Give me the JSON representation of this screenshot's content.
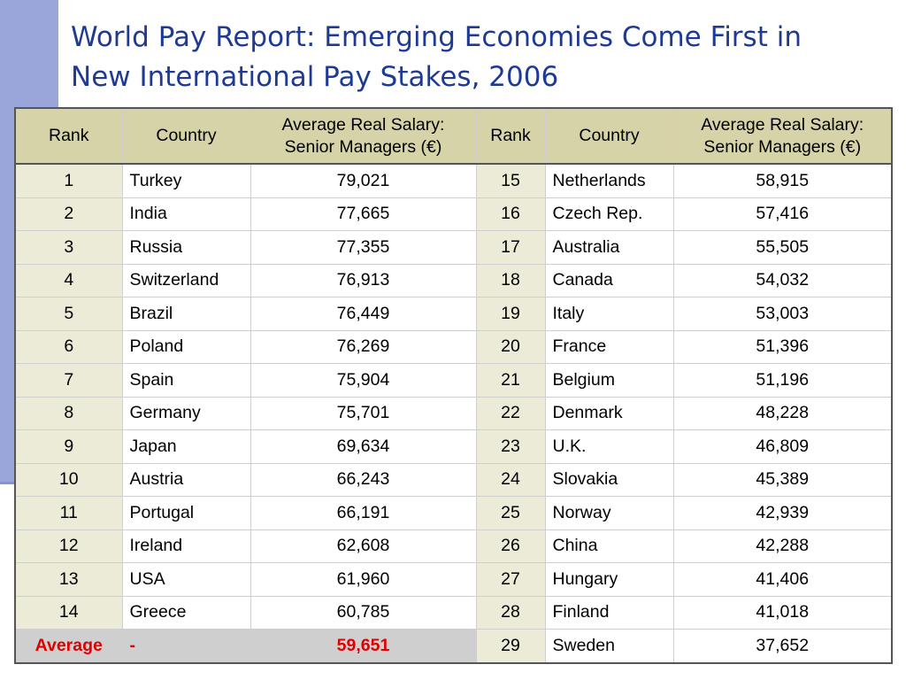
{
  "title": {
    "line1": "World Pay Report: Emerging Economies Come First in",
    "line2": "New International Pay Stakes, 2006"
  },
  "colors": {
    "title": "#1f3a93",
    "header_bg": "#d6d3a8",
    "rank_bg": "#ecebd7",
    "average_bg": "#cfcfcf",
    "average_text": "#e00000",
    "side_bar": "#9aa6d9"
  },
  "table": {
    "headers": [
      "Rank",
      "Country",
      "Average Real Salary: Senior Managers (€)",
      "Rank",
      "Country",
      "Average Real Salary: Senior Managers (€)"
    ],
    "rows": [
      {
        "rank1": "1",
        "country1": "Turkey",
        "salary1": "79,021",
        "rank2": "15",
        "country2": "Netherlands",
        "salary2": "58,915"
      },
      {
        "rank1": "2",
        "country1": "India",
        "salary1": "77,665",
        "rank2": "16",
        "country2": "Czech Rep.",
        "salary2": "57,416"
      },
      {
        "rank1": "3",
        "country1": "Russia",
        "salary1": "77,355",
        "rank2": "17",
        "country2": "Australia",
        "salary2": "55,505"
      },
      {
        "rank1": "4",
        "country1": "Switzerland",
        "salary1": "76,913",
        "rank2": "18",
        "country2": "Canada",
        "salary2": "54,032"
      },
      {
        "rank1": "5",
        "country1": "Brazil",
        "salary1": "76,449",
        "rank2": "19",
        "country2": "Italy",
        "salary2": "53,003"
      },
      {
        "rank1": "6",
        "country1": "Poland",
        "salary1": "76,269",
        "rank2": "20",
        "country2": "France",
        "salary2": "51,396"
      },
      {
        "rank1": "7",
        "country1": "Spain",
        "salary1": "75,904",
        "rank2": "21",
        "country2": "Belgium",
        "salary2": "51,196"
      },
      {
        "rank1": "8",
        "country1": "Germany",
        "salary1": "75,701",
        "rank2": "22",
        "country2": "Denmark",
        "salary2": "48,228"
      },
      {
        "rank1": "9",
        "country1": "Japan",
        "salary1": "69,634",
        "rank2": "23",
        "country2": "U.K.",
        "salary2": "46,809"
      },
      {
        "rank1": "10",
        "country1": "Austria",
        "salary1": "66,243",
        "rank2": "24",
        "country2": "Slovakia",
        "salary2": "45,389"
      },
      {
        "rank1": "11",
        "country1": "Portugal",
        "salary1": "66,191",
        "rank2": "25",
        "country2": "Norway",
        "salary2": "42,939"
      },
      {
        "rank1": "12",
        "country1": "Ireland",
        "salary1": "62,608",
        "rank2": "26",
        "country2": "China",
        "salary2": "42,288"
      },
      {
        "rank1": "13",
        "country1": "USA",
        "salary1": "61,960",
        "rank2": "27",
        "country2": "Hungary",
        "salary2": "41,406"
      },
      {
        "rank1": "14",
        "country1": "Greece",
        "salary1": "60,785",
        "rank2": "28",
        "country2": "Finland",
        "salary2": "41,018"
      }
    ],
    "average_row": {
      "label": "Average",
      "country": "-",
      "salary": "59,651",
      "rank2": "29",
      "country2": "Sweden",
      "salary2": "37,652"
    }
  }
}
